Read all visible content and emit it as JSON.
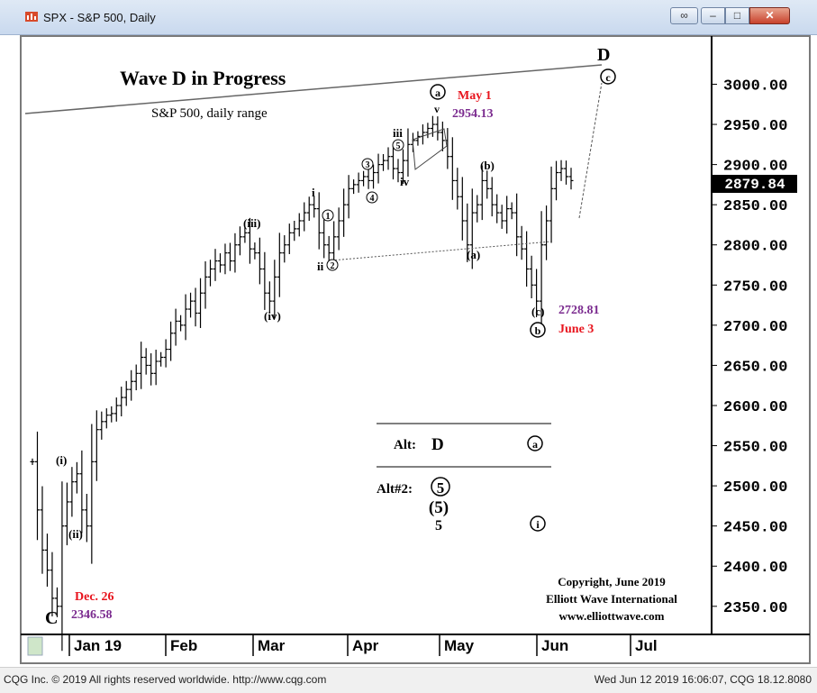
{
  "window": {
    "title": "SPX - S&P 500, Daily"
  },
  "status_bar": {
    "left": "CQG Inc. © 2019 All rights reserved worldwide. http://www.cqg.com",
    "right": "Wed Jun 12 2019 16:06:07, CQG 18.12.8080"
  },
  "chart_data": {
    "type": "ohlc",
    "title": "Wave D in Progress",
    "subtitle": "S&P 500, daily range",
    "ylim": [
      2315,
      3060
    ],
    "y_ticks": [
      2350,
      2400,
      2450,
      2500,
      2550,
      2600,
      2650,
      2700,
      2750,
      2800,
      2850,
      2900,
      2950,
      3000
    ],
    "y_tick_labels": [
      "2350.00",
      "2400.00",
      "2450.00",
      "2500.00",
      "2550.00",
      "2600.00",
      "2650.00",
      "2700.00",
      "2750.00",
      "2800.00",
      "2850.00",
      "2900.00",
      "2950.00",
      "3000.00"
    ],
    "x_tick_labels": [
      "Jan 19",
      "Feb",
      "Mar",
      "Apr",
      "May",
      "Jun",
      "Jul"
    ],
    "last_price": "2879.84",
    "last_value": 2879.84,
    "series": [
      {
        "values": [
          2530,
          2470,
          2420,
          2395,
          2360,
          2350,
          2450,
          2480,
          2505,
          2515,
          2470,
          2450,
          2530,
          2570,
          2580,
          2588,
          2590,
          2600,
          2610,
          2620,
          2630,
          2640,
          2660,
          2650,
          2640,
          2655,
          2660,
          2670,
          2690,
          2705,
          2700,
          2720,
          2730,
          2715,
          2740,
          2760,
          2770,
          2780,
          2775,
          2790,
          2780,
          2800,
          2810,
          2815,
          2795,
          2790,
          2770,
          2740,
          2730,
          2760,
          2790,
          2800,
          2815,
          2820,
          2830,
          2840,
          2850,
          2845,
          2815,
          2800,
          2790,
          2810,
          2830,
          2850,
          2870,
          2875,
          2880,
          2885,
          2880,
          2890,
          2900,
          2905,
          2910,
          2895,
          2890,
          2905,
          2925,
          2930,
          2935,
          2940,
          2945,
          2950,
          2940,
          2930,
          2910,
          2880,
          2860,
          2830,
          2800,
          2840,
          2850,
          2880,
          2870,
          2850,
          2840,
          2830,
          2845,
          2840,
          2810,
          2795,
          2770,
          2750,
          2730,
          2800,
          2830,
          2870,
          2890,
          2895,
          2885,
          2880
        ]
      }
    ],
    "annotations": {
      "wave_labels": [
        "C",
        "(i)",
        "(ii)",
        "(iii)",
        "(iv)",
        "i",
        "ii",
        "iii",
        "iv",
        "(a)",
        "(b)",
        "(c)",
        "v",
        "a",
        "b",
        "c",
        "1",
        "2",
        "3",
        "4",
        "5",
        "D"
      ],
      "dates": [
        "Dec. 26",
        "May 1",
        "June 3"
      ],
      "prices": [
        "2346.58",
        "2954.13",
        "2728.81"
      ],
      "alt1_label": "Alt:",
      "alt1_wave": "D",
      "alt1_sub": "a",
      "alt2_label": "Alt#2:",
      "alt2_waves": [
        "5",
        "(5)",
        "5"
      ],
      "alt2_sub": "i",
      "copyright": [
        "Copyright, June 2019",
        "Elliott Wave International",
        "www.elliottwave.com"
      ]
    }
  }
}
